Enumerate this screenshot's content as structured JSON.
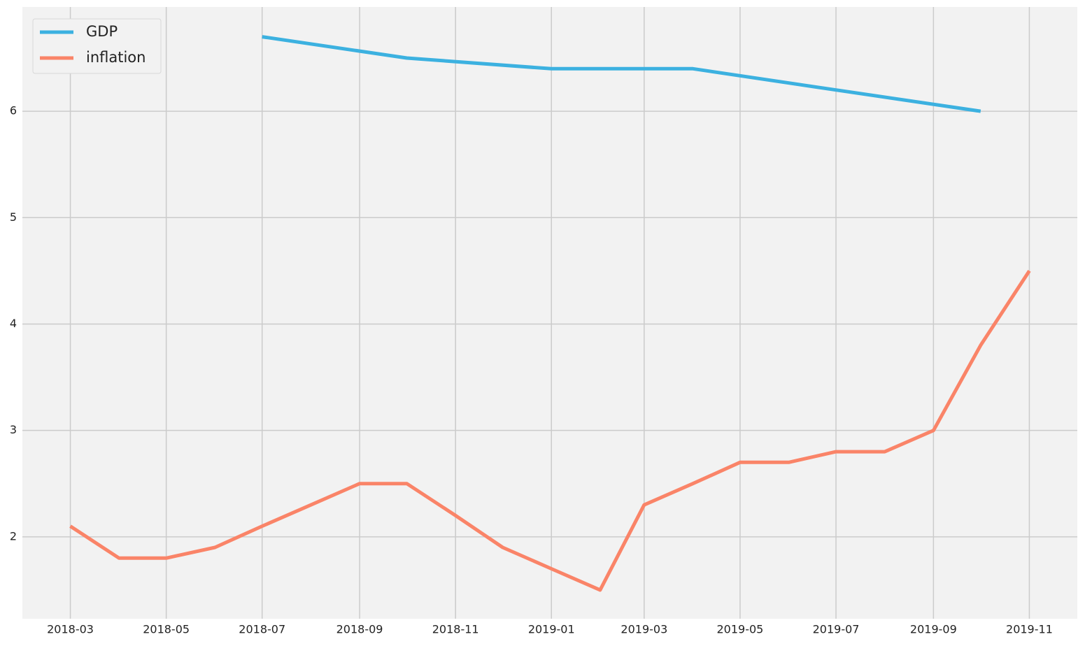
{
  "chart_data": {
    "type": "line",
    "xticks": [
      "2018-03",
      "2018-05",
      "2018-07",
      "2018-09",
      "2018-11",
      "2019-01",
      "2019-03",
      "2019-05",
      "2019-07",
      "2019-09",
      "2019-11"
    ],
    "ylim": [
      1.23,
      6.98
    ],
    "yticks": [
      2,
      3,
      4,
      5,
      6
    ],
    "grid": true,
    "legend": "upper left",
    "series": [
      {
        "name": "GDP",
        "color": "#3cb1e0",
        "x": [
          "2018-07",
          "2018-10",
          "2019-01",
          "2019-04",
          "2019-07",
          "2019-10"
        ],
        "values": [
          6.7,
          6.5,
          6.4,
          6.4,
          6.2,
          6.0
        ]
      },
      {
        "name": "inflation",
        "color": "#fa8468",
        "x": [
          "2018-03",
          "2018-04",
          "2018-05",
          "2018-06",
          "2018-07",
          "2018-08",
          "2018-09",
          "2018-10",
          "2018-11",
          "2018-12",
          "2019-01",
          "2019-02",
          "2019-03",
          "2019-04",
          "2019-05",
          "2019-06",
          "2019-07",
          "2019-08",
          "2019-09",
          "2019-10",
          "2019-11"
        ],
        "values": [
          2.1,
          1.8,
          1.8,
          1.9,
          2.1,
          2.3,
          2.5,
          2.5,
          2.2,
          1.9,
          1.7,
          1.5,
          2.3,
          2.5,
          2.7,
          2.7,
          2.8,
          2.8,
          3.0,
          3.8,
          4.5
        ]
      }
    ]
  }
}
